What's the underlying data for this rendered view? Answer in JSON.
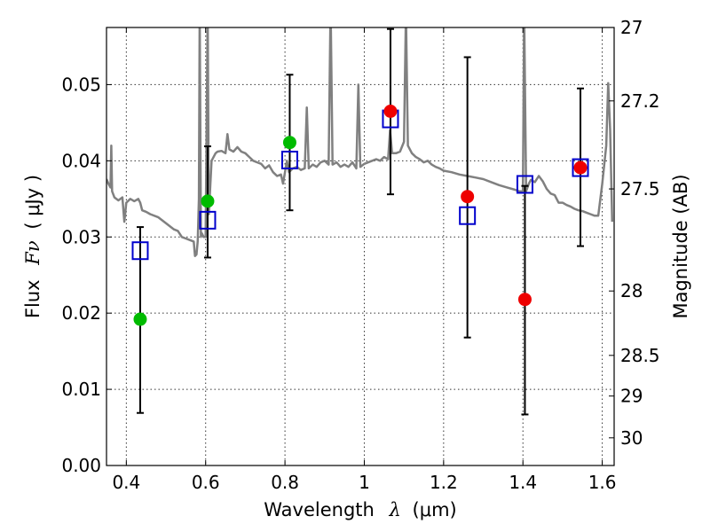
{
  "chart_data": {
    "type": "scatter",
    "title": "",
    "xlabel_text": "Wavelength",
    "xlabel_symbol": "λ",
    "xlabel_unit": "(μm)",
    "ylabel_text": "Flux",
    "ylabel_symbol": "Fν",
    "ylabel_unit": "( μJy )",
    "y2label": "Magnitude (AB)",
    "xlim": [
      0.35,
      1.63
    ],
    "ylim": [
      0.0,
      0.0575
    ],
    "grid": true,
    "x_ticks": [
      {
        "value": 0.4,
        "label": "0.4"
      },
      {
        "value": 0.6,
        "label": "0.6"
      },
      {
        "value": 0.8,
        "label": "0.8"
      },
      {
        "value": 1.0,
        "label": "1"
      },
      {
        "value": 1.2,
        "label": "1.2"
      },
      {
        "value": 1.4,
        "label": "1.4"
      },
      {
        "value": 1.6,
        "label": "1.6"
      }
    ],
    "y_ticks": [
      {
        "value": 0.0,
        "label": "0.00"
      },
      {
        "value": 0.01,
        "label": "0.01"
      },
      {
        "value": 0.02,
        "label": "0.02"
      },
      {
        "value": 0.03,
        "label": "0.03"
      },
      {
        "value": 0.04,
        "label": "0.04"
      },
      {
        "value": 0.05,
        "label": "0.05"
      }
    ],
    "y2_ticks": [
      {
        "mag": 27,
        "label": "27"
      },
      {
        "mag": 27.2,
        "label": "27.2"
      },
      {
        "mag": 27.5,
        "label": "27.5"
      },
      {
        "mag": 28,
        "label": "28"
      },
      {
        "mag": 28.5,
        "label": "28.5"
      },
      {
        "mag": 29,
        "label": "29"
      },
      {
        "mag": 30,
        "label": "30"
      }
    ],
    "colors": {
      "model_line": "#808080",
      "model_points": "#0000cc",
      "green_points": "#00bb00",
      "red_points": "#ee0000",
      "errorbars": "#000000"
    },
    "model_spectrum": [
      [
        0.35,
        0.0376
      ],
      [
        0.355,
        0.037
      ],
      [
        0.36,
        0.0365
      ],
      [
        0.362,
        0.042
      ],
      [
        0.364,
        0.036
      ],
      [
        0.37,
        0.0352
      ],
      [
        0.38,
        0.0348
      ],
      [
        0.39,
        0.0352
      ],
      [
        0.395,
        0.032
      ],
      [
        0.4,
        0.0345
      ],
      [
        0.41,
        0.035
      ],
      [
        0.42,
        0.0347
      ],
      [
        0.43,
        0.035
      ],
      [
        0.435,
        0.0345
      ],
      [
        0.44,
        0.0335
      ],
      [
        0.45,
        0.0333
      ],
      [
        0.46,
        0.033
      ],
      [
        0.48,
        0.0326
      ],
      [
        0.5,
        0.0318
      ],
      [
        0.52,
        0.031
      ],
      [
        0.53,
        0.0308
      ],
      [
        0.54,
        0.03
      ],
      [
        0.55,
        0.0298
      ],
      [
        0.56,
        0.0296
      ],
      [
        0.57,
        0.0294
      ],
      [
        0.573,
        0.0275
      ],
      [
        0.577,
        0.0277
      ],
      [
        0.58,
        0.0295
      ],
      [
        0.583,
        0.035
      ],
      [
        0.585,
        0.06
      ],
      [
        0.588,
        0.03
      ],
      [
        0.59,
        0.0305
      ],
      [
        0.595,
        0.03
      ],
      [
        0.6,
        0.03
      ],
      [
        0.605,
        0.0595
      ],
      [
        0.608,
        0.033
      ],
      [
        0.615,
        0.04
      ],
      [
        0.625,
        0.041
      ],
      [
        0.63,
        0.0412
      ],
      [
        0.64,
        0.0413
      ],
      [
        0.65,
        0.041
      ],
      [
        0.655,
        0.0435
      ],
      [
        0.66,
        0.0415
      ],
      [
        0.67,
        0.0412
      ],
      [
        0.68,
        0.0418
      ],
      [
        0.69,
        0.0412
      ],
      [
        0.7,
        0.041
      ],
      [
        0.71,
        0.0405
      ],
      [
        0.72,
        0.04
      ],
      [
        0.73,
        0.0398
      ],
      [
        0.74,
        0.0396
      ],
      [
        0.75,
        0.039
      ],
      [
        0.76,
        0.0394
      ],
      [
        0.77,
        0.0385
      ],
      [
        0.78,
        0.038
      ],
      [
        0.79,
        0.0382
      ],
      [
        0.795,
        0.037
      ],
      [
        0.8,
        0.0385
      ],
      [
        0.805,
        0.04
      ],
      [
        0.81,
        0.0385
      ],
      [
        0.82,
        0.039
      ],
      [
        0.83,
        0.0392
      ],
      [
        0.84,
        0.0388
      ],
      [
        0.85,
        0.039
      ],
      [
        0.855,
        0.047
      ],
      [
        0.86,
        0.039
      ],
      [
        0.87,
        0.0395
      ],
      [
        0.88,
        0.0392
      ],
      [
        0.89,
        0.0398
      ],
      [
        0.9,
        0.04
      ],
      [
        0.91,
        0.0395
      ],
      [
        0.915,
        0.0605
      ],
      [
        0.92,
        0.0395
      ],
      [
        0.93,
        0.0398
      ],
      [
        0.94,
        0.0392
      ],
      [
        0.95,
        0.0395
      ],
      [
        0.96,
        0.0392
      ],
      [
        0.97,
        0.0398
      ],
      [
        0.98,
        0.039
      ],
      [
        0.985,
        0.05
      ],
      [
        0.99,
        0.0392
      ],
      [
        1.0,
        0.0396
      ],
      [
        1.01,
        0.0398
      ],
      [
        1.02,
        0.04
      ],
      [
        1.03,
        0.0402
      ],
      [
        1.04,
        0.04
      ],
      [
        1.05,
        0.0405
      ],
      [
        1.06,
        0.0402
      ],
      [
        1.065,
        0.044
      ],
      [
        1.07,
        0.041
      ],
      [
        1.08,
        0.041
      ],
      [
        1.09,
        0.0412
      ],
      [
        1.1,
        0.0425
      ],
      [
        1.105,
        0.0595
      ],
      [
        1.11,
        0.042
      ],
      [
        1.12,
        0.041
      ],
      [
        1.13,
        0.0405
      ],
      [
        1.14,
        0.0402
      ],
      [
        1.15,
        0.0398
      ],
      [
        1.16,
        0.04
      ],
      [
        1.17,
        0.0395
      ],
      [
        1.18,
        0.0392
      ],
      [
        1.19,
        0.039
      ],
      [
        1.2,
        0.0387
      ],
      [
        1.22,
        0.0385
      ],
      [
        1.24,
        0.0382
      ],
      [
        1.26,
        0.038
      ],
      [
        1.28,
        0.0378
      ],
      [
        1.3,
        0.0376
      ],
      [
        1.32,
        0.0372
      ],
      [
        1.34,
        0.0368
      ],
      [
        1.36,
        0.0365
      ],
      [
        1.38,
        0.0362
      ],
      [
        1.39,
        0.036
      ],
      [
        1.4,
        0.036
      ],
      [
        1.403,
        0.0595
      ],
      [
        1.408,
        0.036
      ],
      [
        1.415,
        0.037
      ],
      [
        1.42,
        0.0375
      ],
      [
        1.43,
        0.0372
      ],
      [
        1.44,
        0.038
      ],
      [
        1.45,
        0.0373
      ],
      [
        1.46,
        0.0363
      ],
      [
        1.47,
        0.0357
      ],
      [
        1.48,
        0.0355
      ],
      [
        1.49,
        0.0345
      ],
      [
        1.5,
        0.0345
      ],
      [
        1.51,
        0.0342
      ],
      [
        1.52,
        0.034
      ],
      [
        1.53,
        0.0337
      ],
      [
        1.54,
        0.0335
      ],
      [
        1.55,
        0.0334
      ],
      [
        1.56,
        0.0332
      ],
      [
        1.57,
        0.033
      ],
      [
        1.58,
        0.0328
      ],
      [
        1.59,
        0.0328
      ],
      [
        1.6,
        0.037
      ],
      [
        1.61,
        0.042
      ],
      [
        1.615,
        0.0502
      ],
      [
        1.62,
        0.044
      ],
      [
        1.625,
        0.032
      ]
    ],
    "series": [
      {
        "name": "model photometry",
        "marker": "open-square",
        "x": [
          0.435,
          0.605,
          0.812,
          1.066,
          1.26,
          1.405,
          1.545
        ],
        "y": [
          0.0282,
          0.0322,
          0.0401,
          0.0455,
          0.0328,
          0.0369,
          0.0391
        ]
      },
      {
        "name": "measured flux (green)",
        "marker": "filled-circle",
        "x": [
          0.435,
          0.605,
          0.812
        ],
        "y": [
          0.0192,
          0.0347,
          0.0424
        ]
      },
      {
        "name": "measured flux (red)",
        "marker": "filled-circle",
        "x": [
          1.066,
          1.26,
          1.405,
          1.545
        ],
        "y": [
          0.0465,
          0.0353,
          0.0218,
          0.0391
        ]
      }
    ],
    "errorbars": [
      {
        "x": 0.435,
        "low": 0.0069,
        "high": 0.0313
      },
      {
        "x": 0.605,
        "low": 0.0273,
        "high": 0.0419
      },
      {
        "x": 0.812,
        "low": 0.0335,
        "high": 0.0513
      },
      {
        "x": 1.066,
        "low": 0.0356,
        "high": 0.0573
      },
      {
        "x": 1.26,
        "low": 0.0168,
        "high": 0.0536
      },
      {
        "x": 1.405,
        "low": 0.0067,
        "high": 0.0367
      },
      {
        "x": 1.545,
        "low": 0.0288,
        "high": 0.0495
      }
    ]
  }
}
